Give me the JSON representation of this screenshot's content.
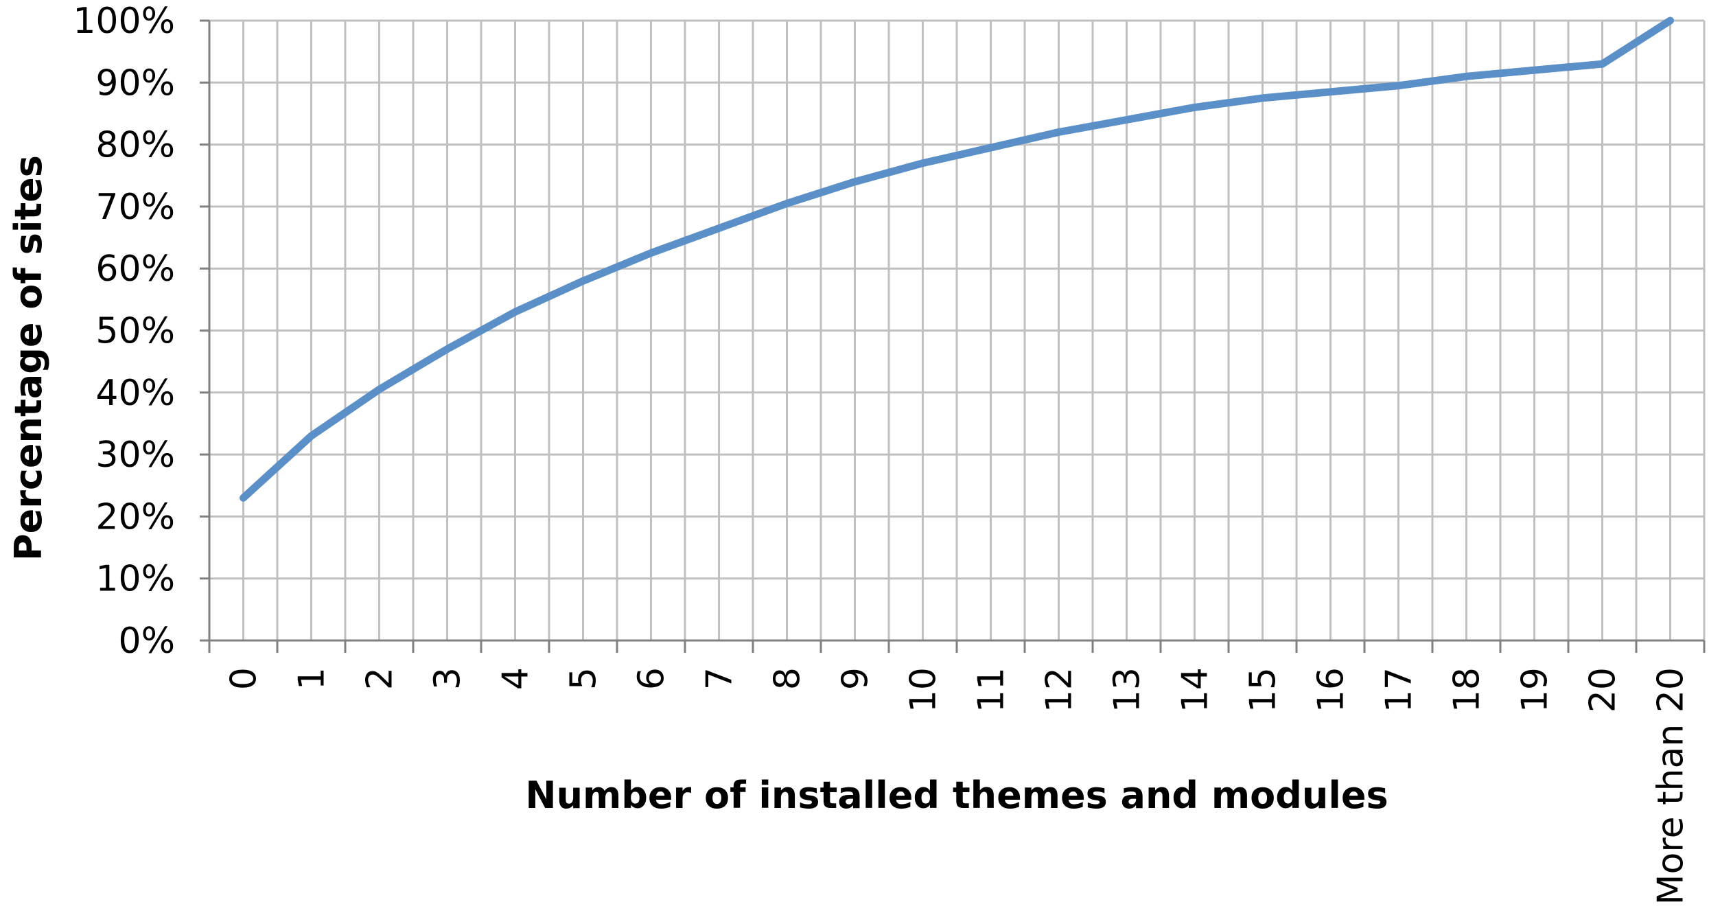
{
  "chart_data": {
    "type": "line",
    "title": "",
    "xlabel": "Number of installed themes and modules",
    "ylabel": "Percentage of sites",
    "categories": [
      "0",
      "1",
      "2",
      "3",
      "4",
      "5",
      "6",
      "7",
      "8",
      "9",
      "10",
      "11",
      "12",
      "13",
      "14",
      "15",
      "16",
      "17",
      "18",
      "19",
      "20",
      "More than 20"
    ],
    "series": [
      {
        "values": [
          23,
          33,
          40.5,
          47,
          53,
          58,
          62.5,
          66.5,
          70.5,
          74,
          77,
          79.5,
          82,
          84,
          86,
          87.5,
          88.5,
          89.5,
          91,
          92,
          93,
          100
        ]
      }
    ],
    "ylim": [
      0,
      100
    ],
    "yticks": [
      "0%",
      "10%",
      "20%",
      "30%",
      "40%",
      "50%",
      "60%",
      "70%",
      "80%",
      "90%",
      "100%"
    ],
    "grid": true,
    "legend": "none",
    "colors": {
      "line": "#5B8FC8",
      "grid": "#C0C0C0",
      "axis": "#808080"
    }
  }
}
